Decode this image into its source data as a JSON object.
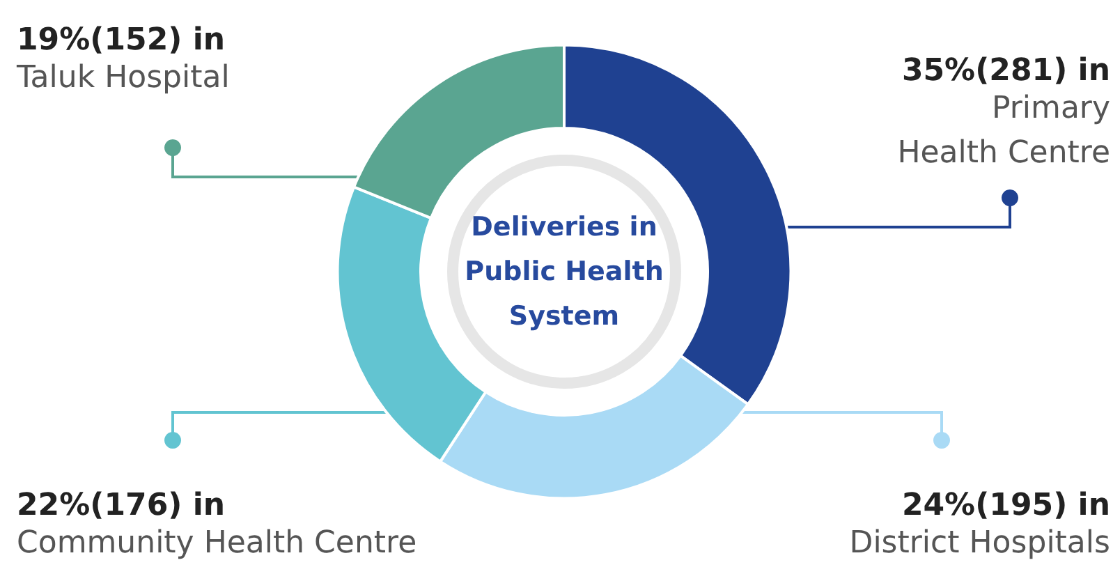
{
  "chart_data": {
    "type": "donut",
    "title": "Deliveries in Public Health System",
    "categories": [
      "Primary Health Centre",
      "District Hospitals",
      "Community Health Centre",
      "Taluk Hospital"
    ],
    "values": [
      281,
      195,
      176,
      152
    ],
    "value_labels": [
      "35%(281) in",
      "24%(195) in",
      "22%(176) in",
      "19%(152) in"
    ],
    "colors": [
      "#1f4191",
      "#a9daf5",
      "#62c4d1",
      "#5aa591"
    ]
  }
}
